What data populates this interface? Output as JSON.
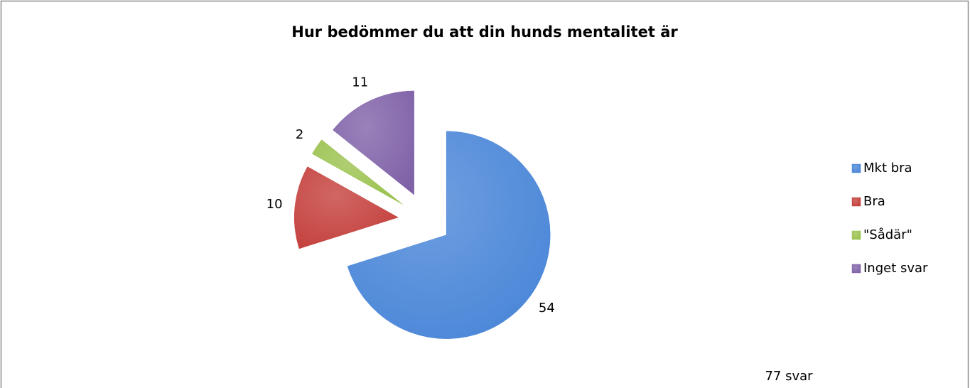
{
  "chart_data": {
    "type": "pie",
    "title": "Hur bedömmer du att din hunds mentalitet är",
    "categories": [
      "Mkt bra",
      "Bra",
      "\"Sådär\"",
      "Inget svar"
    ],
    "values": [
      54,
      10,
      2,
      11
    ],
    "colors": [
      "#4a86d8",
      "#c4403c",
      "#9bc24f",
      "#8062a8"
    ],
    "legend": "right",
    "annotation": "77 svar"
  }
}
